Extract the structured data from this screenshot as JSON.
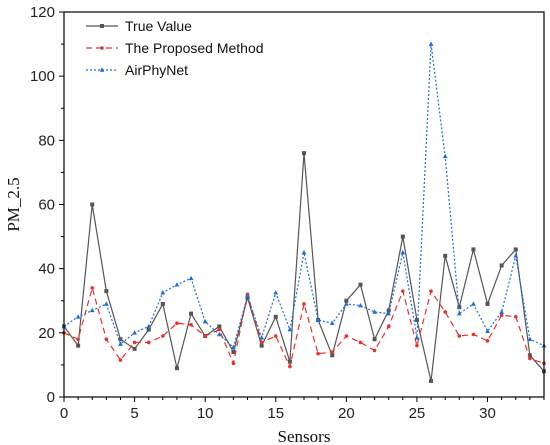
{
  "chart_data": {
    "type": "line",
    "xlabel": "Sensors",
    "ylabel": "PM_2.5",
    "xlim": [
      0,
      34
    ],
    "ylim": [
      0,
      120
    ],
    "xticks": [
      0,
      5,
      10,
      15,
      20,
      25,
      30
    ],
    "yticks": [
      0,
      20,
      40,
      60,
      80,
      100,
      120
    ],
    "grid": false,
    "legend_position": "top-left",
    "x": [
      0,
      1,
      2,
      3,
      4,
      5,
      6,
      7,
      8,
      9,
      10,
      11,
      12,
      13,
      14,
      15,
      16,
      17,
      18,
      19,
      20,
      21,
      22,
      23,
      24,
      25,
      26,
      27,
      28,
      29,
      30,
      31,
      32,
      33,
      34
    ],
    "series": [
      {
        "name": "True Value",
        "color": "#555555",
        "line_style": "solid",
        "marker": "square",
        "values": [
          22,
          16,
          60,
          33,
          18,
          15,
          21,
          29,
          9,
          26,
          19,
          22,
          14,
          31,
          16,
          25,
          11,
          76,
          24,
          13,
          30,
          35,
          18,
          27,
          50,
          24,
          5,
          44,
          28,
          46,
          29,
          41,
          46,
          13,
          8
        ]
      },
      {
        "name": "The Proposed Method",
        "color": "#e8312a",
        "line_style": "dashed",
        "marker": "dot",
        "values": [
          20,
          18,
          34,
          18,
          11.5,
          17,
          17,
          19,
          23,
          22.5,
          19,
          21,
          10.5,
          32,
          17,
          19,
          9.5,
          29,
          13.5,
          14,
          19,
          17,
          14.5,
          22,
          33,
          16,
          33,
          26.5,
          19,
          19.5,
          17.5,
          25.5,
          25,
          12,
          10.5
        ]
      },
      {
        "name": "AirPhyNet",
        "color": "#1d6fd6",
        "line_style": "dotted",
        "marker": "triangle",
        "values": [
          22,
          25,
          27,
          29,
          16.5,
          20,
          22,
          32.5,
          35,
          37,
          23.5,
          19.5,
          15.5,
          31.5,
          18.5,
          32.5,
          21,
          45,
          24,
          23,
          29,
          28.5,
          26.5,
          26,
          45,
          18.5,
          110,
          75,
          26,
          29,
          20.5,
          26.5,
          44,
          18,
          16
        ]
      }
    ]
  }
}
